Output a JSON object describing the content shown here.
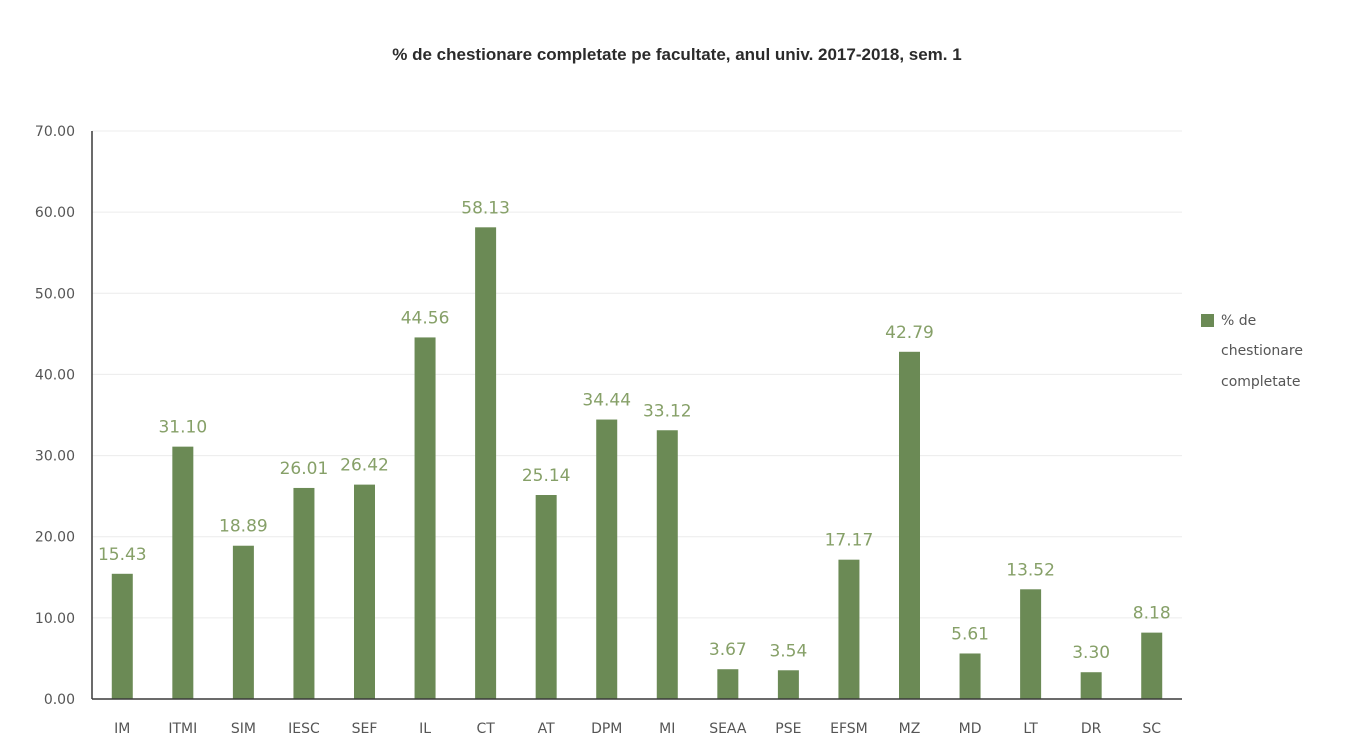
{
  "chart_data": {
    "type": "bar",
    "title": "% de chestionare completate pe facultate, anul univ. 2017-2018, sem. 1",
    "xlabel": "",
    "ylabel": "",
    "categories": [
      "IM",
      "ITMI",
      "SIM",
      "IESC",
      "SEF",
      "IL",
      "CT",
      "AT",
      "DPM",
      "MI",
      "SEAA",
      "PSE",
      "EFSM",
      "MZ",
      "MD",
      "LT",
      "DR",
      "SC"
    ],
    "series": [
      {
        "name": "% de chestionare completate",
        "values": [
          15.43,
          31.1,
          18.89,
          26.01,
          26.42,
          44.56,
          58.13,
          25.14,
          34.44,
          33.12,
          3.67,
          3.54,
          17.17,
          42.79,
          5.61,
          13.52,
          3.3,
          8.18
        ]
      }
    ],
    "data_labels": [
      "15.43",
      "31.10",
      "18.89",
      "26.01",
      "26.42",
      "44.56",
      "58.13",
      "25.14",
      "34.44",
      "33.12",
      "3.67",
      "3.54",
      "17.17",
      "42.79",
      "5.61",
      "13.52",
      "3.30",
      "8.18"
    ],
    "ylim": [
      0,
      70
    ],
    "yticks": [
      "0.00",
      "10.00",
      "20.00",
      "30.00",
      "40.00",
      "50.00",
      "60.00",
      "70.00"
    ],
    "grid": true,
    "legend": {
      "position": "right",
      "lines": [
        "% de",
        "chestionare",
        "completate"
      ]
    },
    "colors": {
      "bar": "#6b8a55",
      "label": "#86a068"
    }
  }
}
